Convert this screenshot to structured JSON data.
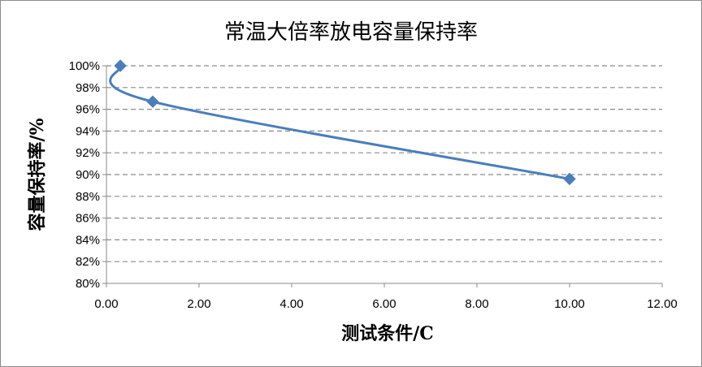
{
  "chart_data": {
    "type": "scatter",
    "title": "常温大倍率放电容量保持率",
    "xlabel": "测试条件/C",
    "ylabel": "容量保持率/%",
    "xlim": [
      0,
      12
    ],
    "ylim": [
      80,
      100
    ],
    "x_ticks": [
      0,
      2,
      4,
      6,
      8,
      10,
      12
    ],
    "x_tick_labels": [
      "0.00",
      "2.00",
      "4.00",
      "6.00",
      "8.00",
      "10.00",
      "12.00"
    ],
    "y_ticks": [
      80,
      82,
      84,
      86,
      88,
      90,
      92,
      94,
      96,
      98,
      100
    ],
    "y_tick_labels": [
      "80%",
      "82%",
      "84%",
      "86%",
      "88%",
      "90%",
      "92%",
      "94%",
      "96%",
      "98%",
      "100%"
    ],
    "grid": "horizontal dashed",
    "legend": "none",
    "series": [
      {
        "x": [
          0.3,
          1,
          10
        ],
        "y": [
          100,
          96.7,
          89.6
        ],
        "line": "smooth",
        "marker": "diamond",
        "color": "#4a7ebb"
      }
    ]
  }
}
